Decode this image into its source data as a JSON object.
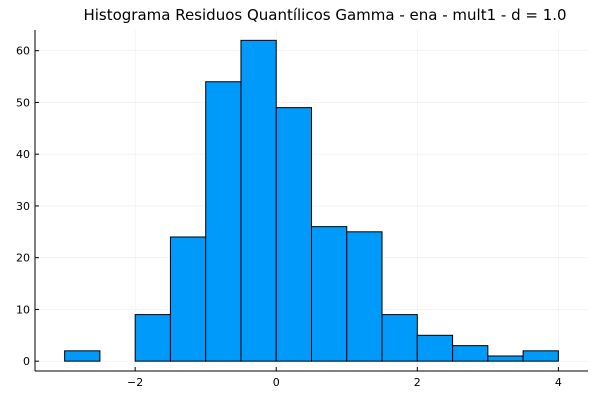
{
  "chart_data": {
    "type": "bar",
    "title": "Histograma Residuos Quantílicos Gamma - ena - mult1 - d = 1.0",
    "xlabel": "",
    "ylabel": "",
    "bin_width": 0.5,
    "bins": [
      {
        "start": -3.0,
        "end": -2.5,
        "count": 2
      },
      {
        "start": -2.5,
        "end": -2.0,
        "count": 0
      },
      {
        "start": -2.0,
        "end": -1.5,
        "count": 9
      },
      {
        "start": -1.5,
        "end": -1.0,
        "count": 24
      },
      {
        "start": -1.0,
        "end": -0.5,
        "count": 54
      },
      {
        "start": -0.5,
        "end": 0.0,
        "count": 62
      },
      {
        "start": 0.0,
        "end": 0.5,
        "count": 49
      },
      {
        "start": 0.5,
        "end": 1.0,
        "count": 26
      },
      {
        "start": 1.0,
        "end": 1.5,
        "count": 25
      },
      {
        "start": 1.5,
        "end": 2.0,
        "count": 9
      },
      {
        "start": 2.0,
        "end": 2.5,
        "count": 5
      },
      {
        "start": 2.5,
        "end": 3.0,
        "count": 3
      },
      {
        "start": 3.0,
        "end": 3.5,
        "count": 1
      },
      {
        "start": 3.5,
        "end": 4.0,
        "count": 2
      }
    ],
    "xlim": [
      -3.42,
      4.42
    ],
    "ylim": [
      -1.9,
      64
    ],
    "x_ticks": [
      {
        "value": -2,
        "label": "−2"
      },
      {
        "value": 0,
        "label": "0"
      },
      {
        "value": 2,
        "label": "2"
      },
      {
        "value": 4,
        "label": "4"
      }
    ],
    "y_ticks": [
      {
        "value": 0,
        "label": "0"
      },
      {
        "value": 10,
        "label": "10"
      },
      {
        "value": 20,
        "label": "20"
      },
      {
        "value": 30,
        "label": "30"
      },
      {
        "value": 40,
        "label": "40"
      },
      {
        "value": 50,
        "label": "50"
      },
      {
        "value": 60,
        "label": "60"
      }
    ],
    "grid": true,
    "legend": "none",
    "bar_color": "#009AFA",
    "edge_color": "#000000"
  }
}
